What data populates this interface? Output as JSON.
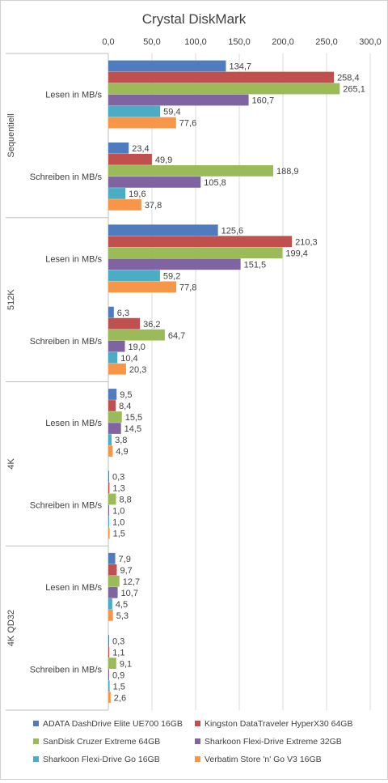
{
  "chart_data": {
    "type": "bar",
    "orientation": "horizontal",
    "title": "Crystal DiskMark",
    "xlim": [
      0,
      300
    ],
    "ticks": [
      "0,0",
      "50,0",
      "100,0",
      "150,0",
      "200,0",
      "250,0",
      "300,0"
    ],
    "grid": true,
    "legend_position": "bottom",
    "series": [
      {
        "name": "ADATA DashDrive Elite UE700 16GB",
        "color": "#4f7bbf"
      },
      {
        "name": "Kingston DataTraveler HyperX30 64GB",
        "color": "#c0504d"
      },
      {
        "name": "SanDisk Cruzer Extreme 64GB",
        "color": "#9bbb59"
      },
      {
        "name": "Sharkoon Flexi-Drive Extreme 32GB",
        "color": "#8064a2"
      },
      {
        "name": "Sharkoon Flexi-Drive Go 16GB",
        "color": "#4bacc6"
      },
      {
        "name": "Verbatim Store 'n' Go V3 16GB",
        "color": "#f79646"
      }
    ],
    "groups": [
      {
        "name": "Sequentiell",
        "categories": [
          {
            "label": "Lesen in MB/s",
            "values": [
              134.7,
              258.4,
              265.1,
              160.7,
              59.4,
              77.6
            ],
            "labels": [
              "134,7",
              "258,4",
              "265,1",
              "160,7",
              "59,4",
              "77,6"
            ]
          },
          {
            "label": "Schreiben in MB/s",
            "values": [
              23.4,
              49.9,
              188.9,
              105.8,
              19.6,
              37.8
            ],
            "labels": [
              "23,4",
              "49,9",
              "188,9",
              "105,8",
              "19,6",
              "37,8"
            ]
          }
        ]
      },
      {
        "name": "512K",
        "categories": [
          {
            "label": "Lesen in MB/s",
            "values": [
              125.6,
              210.3,
              199.4,
              151.5,
              59.2,
              77.8
            ],
            "labels": [
              "125,6",
              "210,3",
              "199,4",
              "151,5",
              "59,2",
              "77,8"
            ]
          },
          {
            "label": "Schreiben in MB/s",
            "values": [
              6.3,
              36.2,
              64.7,
              19.0,
              10.4,
              20.3
            ],
            "labels": [
              "6,3",
              "36,2",
              "64,7",
              "19,0",
              "10,4",
              "20,3"
            ]
          }
        ]
      },
      {
        "name": "4K",
        "categories": [
          {
            "label": "Lesen in MB/s",
            "values": [
              9.5,
              8.4,
              15.5,
              14.5,
              3.8,
              4.9
            ],
            "labels": [
              "9,5",
              "8,4",
              "15,5",
              "14,5",
              "3,8",
              "4,9"
            ]
          },
          {
            "label": "Schreiben in MB/s",
            "values": [
              0.3,
              1.3,
              8.8,
              1.0,
              1.0,
              1.5
            ],
            "labels": [
              "0,3",
              "1,3",
              "8,8",
              "1,0",
              "1,0",
              "1,5"
            ]
          }
        ]
      },
      {
        "name": "4K QD32",
        "categories": [
          {
            "label": "Lesen in MB/s",
            "values": [
              7.9,
              9.7,
              12.7,
              10.7,
              4.5,
              5.3
            ],
            "labels": [
              "7,9",
              "9,7",
              "12,7",
              "10,7",
              "4,5",
              "5,3"
            ]
          },
          {
            "label": "Schreiben in MB/s",
            "values": [
              0.3,
              1.1,
              9.1,
              0.9,
              1.5,
              2.6
            ],
            "labels": [
              "0,3",
              "1,1",
              "9,1",
              "0,9",
              "1,5",
              "2,6"
            ]
          }
        ]
      }
    ]
  }
}
